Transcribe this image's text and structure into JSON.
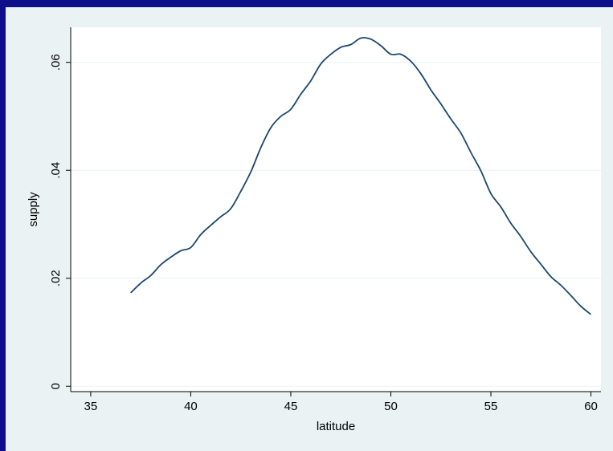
{
  "colors": {
    "frame": "#0c0e8a",
    "graph_background": "#eaf2f3",
    "plot_background": "#ffffff",
    "grid": "#eaf2f3",
    "line": "#1a476f"
  },
  "chart_data": {
    "type": "line",
    "title": "",
    "xlabel": "latitude",
    "ylabel": "supply",
    "xlim": [
      34,
      60.5
    ],
    "ylim": [
      -0.001,
      0.0665
    ],
    "xticks": [
      35,
      40,
      45,
      50,
      55,
      60
    ],
    "xtick_labels": [
      "35",
      "40",
      "45",
      "50",
      "55",
      "60"
    ],
    "yticks": [
      0,
      0.02,
      0.04,
      0.06
    ],
    "ytick_labels": [
      "0",
      ".02",
      ".04",
      ".06"
    ],
    "grid": "horizontal",
    "legend": "none",
    "series": [
      {
        "x": [
          37.0,
          37.5,
          38.0,
          38.5,
          39.0,
          39.5,
          40.0,
          40.5,
          41.0,
          41.5,
          42.0,
          42.5,
          43.0,
          43.5,
          44.0,
          44.5,
          45.0,
          45.5,
          46.0,
          46.5,
          47.0,
          47.5,
          48.0,
          48.5,
          49.0,
          49.5,
          50.0,
          50.5,
          51.0,
          51.5,
          52.0,
          52.5,
          53.0,
          53.5,
          54.0,
          54.5,
          55.0,
          55.5,
          56.0,
          56.5,
          57.0,
          57.5,
          58.0,
          58.5,
          59.0,
          59.5,
          60.0
        ],
        "y": [
          0.0173,
          0.0191,
          0.0205,
          0.0225,
          0.0239,
          0.0251,
          0.0257,
          0.0281,
          0.0298,
          0.0314,
          0.0329,
          0.0361,
          0.0397,
          0.0442,
          0.0479,
          0.05,
          0.0513,
          0.0541,
          0.0566,
          0.0597,
          0.0615,
          0.0628,
          0.0633,
          0.0645,
          0.0643,
          0.0631,
          0.0615,
          0.0615,
          0.0602,
          0.0579,
          0.0549,
          0.0523,
          0.0495,
          0.0469,
          0.0433,
          0.0399,
          0.0357,
          0.0332,
          0.0302,
          0.0277,
          0.0249,
          0.0226,
          0.0203,
          0.0187,
          0.0168,
          0.0148,
          0.0133
        ]
      }
    ]
  }
}
